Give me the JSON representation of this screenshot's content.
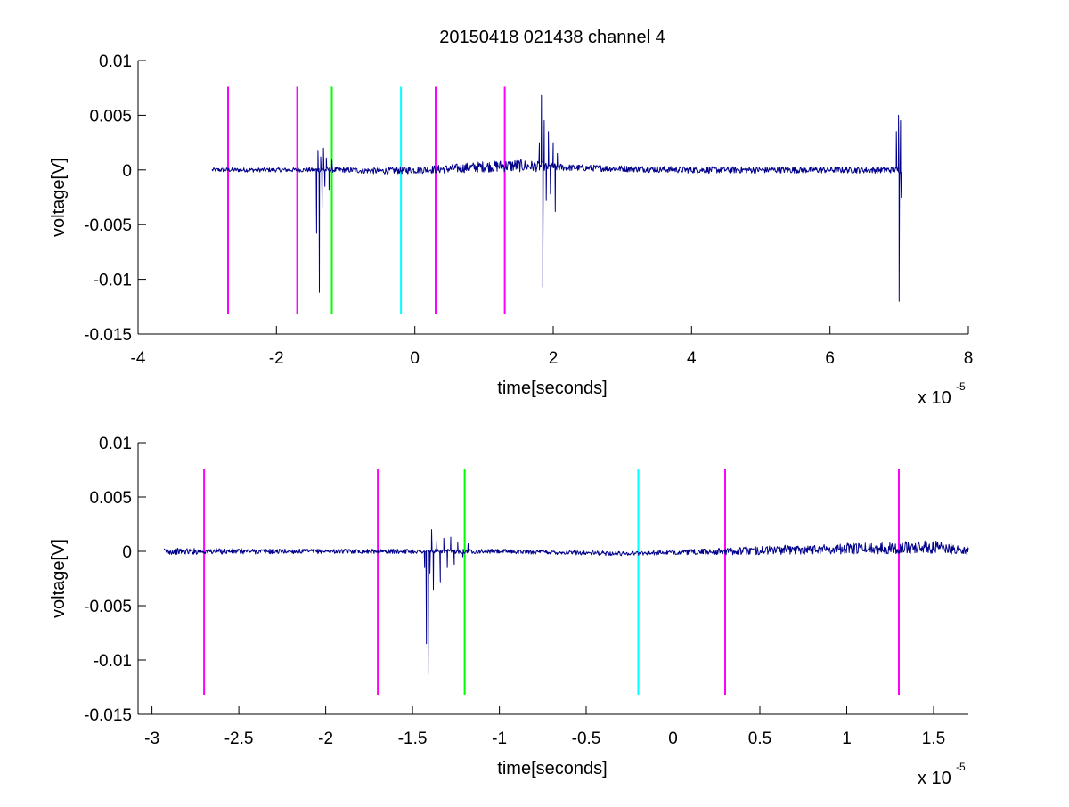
{
  "figure": {
    "title": "20150418 021438 channel 4",
    "colors": {
      "signal": "#00008b",
      "magenta": "#ff00ff",
      "green": "#00ff00",
      "cyan": "#00ffff",
      "axis": "#000000",
      "background": "#ffffff"
    }
  },
  "chart_data": [
    {
      "type": "line",
      "title": "20150418 021438 channel 4",
      "xlabel": "time[seconds]",
      "ylabel": "voltage[V]",
      "x_exponent_base": "x 10",
      "x_exponent_power": "-5",
      "xlim": [
        -4,
        8
      ],
      "ylim": [
        -0.015,
        0.01
      ],
      "xticks": [
        -4,
        -2,
        0,
        2,
        4,
        6,
        8
      ],
      "xtick_labels": [
        "-4",
        "-2",
        "0",
        "2",
        "4",
        "6",
        "8"
      ],
      "yticks": [
        0.01,
        0.005,
        0,
        -0.005,
        -0.01,
        -0.015
      ],
      "ytick_labels": [
        "0.01",
        "0.005",
        "0",
        "-0.005",
        "-0.01",
        "-0.015"
      ],
      "grid": false,
      "series": [
        {
          "color": "#00008b",
          "x_range": [
            -2.93,
            7.03
          ],
          "baseline_ripple": [
            [
              -2.93,
              0.0002
            ],
            [
              -1.5,
              0.0002
            ],
            [
              0.5,
              0.0004
            ],
            [
              1.0,
              0.0005
            ],
            [
              1.5,
              0.0006
            ],
            [
              2.2,
              0.0003
            ],
            [
              4.0,
              0.0003
            ],
            [
              6.0,
              0.0003
            ],
            [
              7.03,
              0.0003
            ]
          ],
          "baseline_drift": [
            [
              -2.93,
              0.0
            ],
            [
              -1.0,
              0.0
            ],
            [
              -0.5,
              -0.0001
            ],
            [
              0.0,
              0.0
            ],
            [
              0.5,
              0.0001
            ],
            [
              1.0,
              0.0003
            ],
            [
              1.5,
              0.0004
            ],
            [
              1.8,
              0.0003
            ],
            [
              2.3,
              0.0002
            ],
            [
              4.0,
              0.0
            ],
            [
              6.0,
              0.0
            ],
            [
              7.03,
              0.0
            ]
          ],
          "events": [
            [
              -1.42,
              -0.0058
            ],
            [
              -1.4,
              0.0018
            ],
            [
              -1.38,
              -0.0112
            ],
            [
              -1.36,
              0.0012
            ],
            [
              -1.34,
              -0.0035
            ],
            [
              -1.32,
              0.002
            ],
            [
              -1.3,
              -0.0015
            ],
            [
              -1.28,
              0.0011
            ],
            [
              -1.24,
              -0.0018
            ],
            [
              -1.2,
              0.0009
            ],
            [
              1.8,
              0.0025
            ],
            [
              1.83,
              0.0068
            ],
            [
              1.85,
              -0.0107
            ],
            [
              1.87,
              0.0045
            ],
            [
              1.9,
              -0.0028
            ],
            [
              1.93,
              0.0035
            ],
            [
              1.96,
              -0.0022
            ],
            [
              2.0,
              0.0025
            ],
            [
              2.03,
              -0.0038
            ],
            [
              2.06,
              0.0015
            ],
            [
              6.96,
              0.0035
            ],
            [
              6.99,
              0.005
            ],
            [
              7.0,
              -0.012
            ],
            [
              7.02,
              0.0045
            ],
            [
              7.03,
              -0.0025
            ]
          ]
        }
      ],
      "vlines": [
        {
          "x": -2.7,
          "color": "magenta"
        },
        {
          "x": -1.7,
          "color": "magenta"
        },
        {
          "x": -1.2,
          "color": "green"
        },
        {
          "x": -0.2,
          "color": "cyan"
        },
        {
          "x": 0.3,
          "color": "magenta"
        },
        {
          "x": 1.3,
          "color": "magenta"
        }
      ],
      "vline_yrange": [
        -0.0132,
        0.0076
      ]
    },
    {
      "type": "line",
      "xlabel": "time[seconds]",
      "ylabel": "voltage[V]",
      "x_exponent_base": "x 10",
      "x_exponent_power": "-5",
      "xlim": [
        -3.08,
        1.7
      ],
      "ylim": [
        -0.015,
        0.01
      ],
      "xticks": [
        -3,
        -2.5,
        -2,
        -1.5,
        -1,
        -0.5,
        0,
        0.5,
        1,
        1.5
      ],
      "xtick_labels": [
        "-3",
        "-2.5",
        "-2",
        "-1.5",
        "-1",
        "-0.5",
        "0",
        "0.5",
        "1",
        "1.5"
      ],
      "yticks": [
        0.01,
        0.005,
        0,
        -0.005,
        -0.01,
        -0.015
      ],
      "ytick_labels": [
        "0.01",
        "0.005",
        "0",
        "-0.005",
        "-0.01",
        "-0.015"
      ],
      "grid": false,
      "series": [
        {
          "color": "#00008b",
          "x_range": [
            -2.93,
            1.7
          ],
          "baseline_ripple": [
            [
              -2.93,
              0.0003
            ],
            [
              -2.0,
              0.0002
            ],
            [
              -1.0,
              0.0002
            ],
            [
              0.0,
              0.0002
            ],
            [
              0.5,
              0.0004
            ],
            [
              1.0,
              0.0005
            ],
            [
              1.5,
              0.0006
            ],
            [
              1.7,
              0.0004
            ]
          ],
          "baseline_drift": [
            [
              -2.93,
              0.0
            ],
            [
              -1.0,
              0.0
            ],
            [
              -0.3,
              -0.0002
            ],
            [
              0.0,
              -0.0001
            ],
            [
              0.3,
              0.0
            ],
            [
              0.8,
              0.0002
            ],
            [
              1.2,
              0.0003
            ],
            [
              1.5,
              0.0004
            ],
            [
              1.7,
              0.0001
            ]
          ],
          "events": [
            [
              -1.43,
              -0.0015
            ],
            [
              -1.42,
              -0.0085
            ],
            [
              -1.41,
              -0.0113
            ],
            [
              -1.4,
              -0.002
            ],
            [
              -1.39,
              0.002
            ],
            [
              -1.38,
              -0.0035
            ],
            [
              -1.36,
              0.001
            ],
            [
              -1.34,
              -0.0028
            ],
            [
              -1.32,
              0.0012
            ],
            [
              -1.3,
              -0.0015
            ],
            [
              -1.28,
              0.0013
            ],
            [
              -1.26,
              -0.0012
            ],
            [
              -1.24,
              0.0008
            ],
            [
              -1.21,
              -0.0005
            ],
            [
              -1.18,
              0.0007
            ]
          ]
        }
      ],
      "vlines": [
        {
          "x": -2.7,
          "color": "magenta"
        },
        {
          "x": -1.7,
          "color": "magenta"
        },
        {
          "x": -1.2,
          "color": "green"
        },
        {
          "x": -0.2,
          "color": "cyan"
        },
        {
          "x": 0.3,
          "color": "magenta"
        },
        {
          "x": 1.3,
          "color": "magenta"
        }
      ],
      "vline_yrange": [
        -0.0132,
        0.0076
      ]
    }
  ]
}
